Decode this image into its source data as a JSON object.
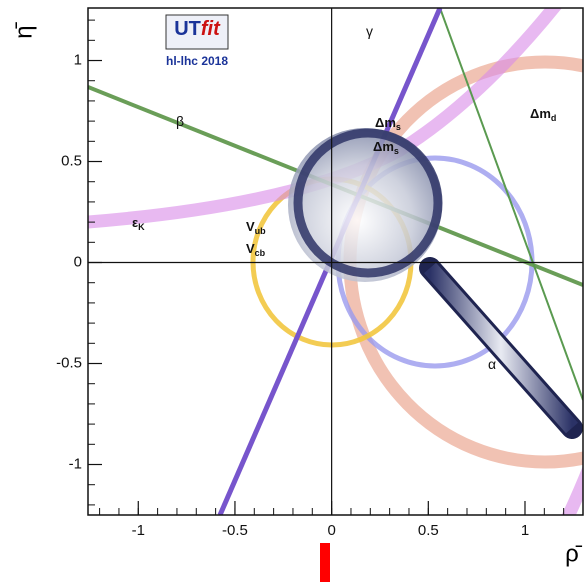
{
  "chart_data": {
    "type": "constraint",
    "logo": {
      "prefix": "UT",
      "suffix": "fit",
      "subtitle": "hl-lhc 2018"
    },
    "x_label": "ρ̄",
    "y_label": "η̄",
    "xlim": [
      -1.26,
      1.3
    ],
    "ylim": [
      -1.25,
      1.26
    ],
    "xticks": [
      -1,
      -0.5,
      0,
      0.5,
      1
    ],
    "yticks": [
      -1,
      -0.5,
      0,
      0.5,
      1
    ],
    "annotations": [
      {
        "text": "γ"
      },
      {
        "text": "β"
      },
      {
        "text": "α"
      },
      {
        "text": "ε",
        "sub": "K"
      },
      {
        "text": "V",
        "sub": "ub"
      },
      {
        "text": "V",
        "sub": "cb"
      },
      {
        "text": "Δm",
        "sub": "s"
      },
      {
        "text": "Δm",
        "sub": "s"
      },
      {
        "text": "Δm",
        "sub": "d"
      }
    ]
  }
}
